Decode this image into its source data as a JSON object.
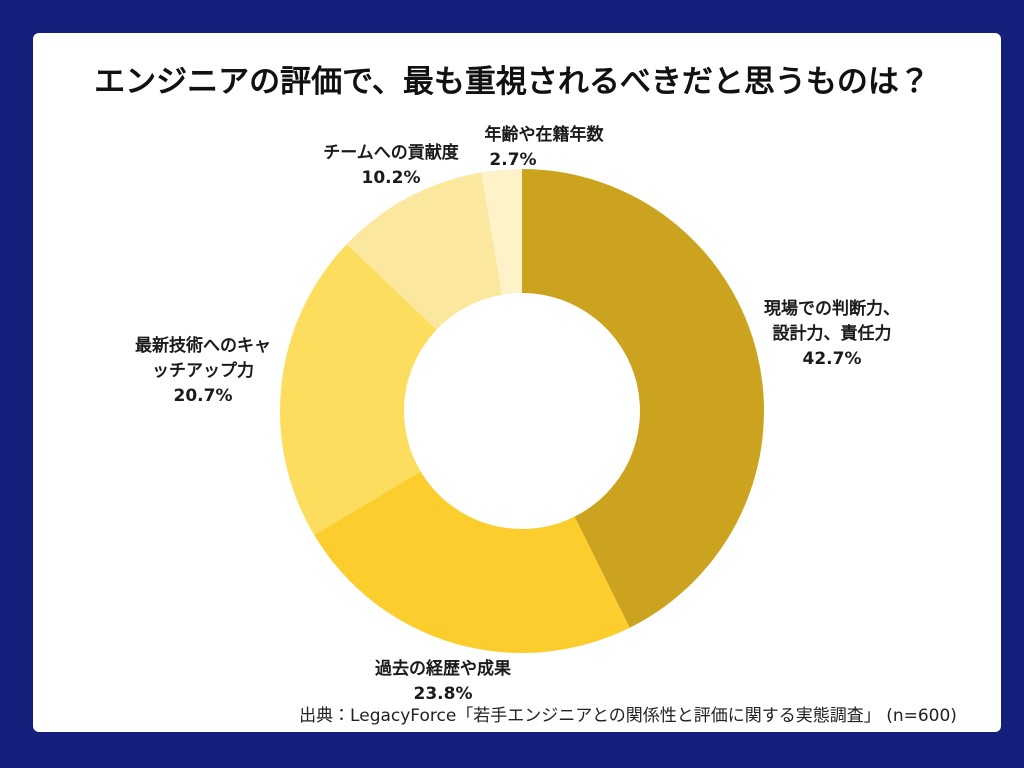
{
  "page": {
    "title": "エンジニアの評価で、最も重視されるべきだと思うものは？",
    "source": "出典：LegacyForce「若手エンジニアとの関係性と評価に関する実態調査」 (n=600)"
  },
  "frame": {
    "border_color": "#131F7B",
    "card_color": "#FFFFFF"
  },
  "chart_data": {
    "type": "pie",
    "subtype": "donut",
    "title": "エンジニアの評価で、最も重視されるべきだと思うものは？",
    "categories": [
      "現場での判断力、設計力、責任力",
      "過去の経歴や成果",
      "最新技術へのキャッチアップ力",
      "チームへの貢献度",
      "年齢や在籍年数"
    ],
    "values": [
      42.7,
      23.8,
      20.7,
      10.2,
      2.7
    ],
    "unit": "%",
    "sample_size": "n=600",
    "colors": [
      "#CCA31E",
      "#FBCD2D",
      "#FDDD5D",
      "#FBE79E",
      "#FDF2C8"
    ],
    "start_angle_deg": 0,
    "direction": "clockwise",
    "inner_radius_ratio": 0.49,
    "legend": "none",
    "labels": [
      {
        "lines": [
          "現場での判断力、",
          "設計力、責任力",
          "42.7%"
        ]
      },
      {
        "lines": [
          "過去の経歴や成果",
          "23.8%"
        ]
      },
      {
        "lines": [
          "最新技術へのキャ",
          "ッチアップ力",
          "20.7%"
        ]
      },
      {
        "lines": [
          "チームへの貢献度",
          "10.2%"
        ]
      },
      {
        "lines": [
          "年齢や在籍年数",
          "2.7%"
        ]
      }
    ]
  }
}
